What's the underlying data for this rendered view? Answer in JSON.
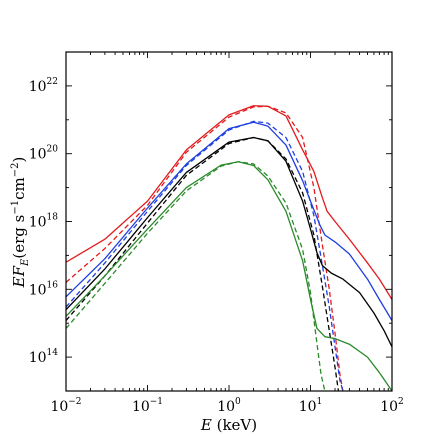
{
  "chart_data": {
    "type": "line",
    "title": "",
    "xlabel": "E (keV)",
    "xlabel_parts": {
      "var": "E",
      "unit": " (keV)"
    },
    "ylabel": "EF_E(erg s^-1 cm^-2)",
    "ylabel_parts": {
      "var": "EF",
      "sub": "E",
      "unit_open": "(erg s",
      "exp1": "−1",
      "unit_mid": "cm",
      "exp2": "−2",
      "unit_close": ")"
    },
    "x_scale": "log",
    "y_scale": "log",
    "xlim": [
      0.01,
      100
    ],
    "ylim": [
      10000000000000.0,
      1e+23
    ],
    "x_ticks": [
      {
        "value": 0.01,
        "base": "10",
        "exp": "−2"
      },
      {
        "value": 0.1,
        "base": "10",
        "exp": "−1"
      },
      {
        "value": 1,
        "base": "10",
        "exp": "0"
      },
      {
        "value": 10,
        "base": "10",
        "exp": "1"
      },
      {
        "value": 100,
        "base": "10",
        "exp": "2"
      }
    ],
    "y_ticks": [
      {
        "value": 100000000000000.0,
        "base": "10",
        "exp": "14"
      },
      {
        "value": 1e+16,
        "base": "10",
        "exp": "16"
      },
      {
        "value": 1e+18,
        "base": "10",
        "exp": "18"
      },
      {
        "value": 1e+20,
        "base": "10",
        "exp": "20"
      },
      {
        "value": 1e+22,
        "base": "10",
        "exp": "22"
      }
    ],
    "grid": false,
    "legend": "none",
    "series": [
      {
        "color": "#e31a1c",
        "style": "solid",
        "points": [
          [
            0.01,
            6.3e+16
          ],
          [
            0.03,
            3e+17
          ],
          [
            0.1,
            4e+18
          ],
          [
            0.3,
            1.3e+20
          ],
          [
            1,
            1.4e+21
          ],
          [
            2,
            2.6e+21
          ],
          [
            3,
            2.5e+21
          ],
          [
            5,
            1.3e+21
          ],
          [
            8,
            1.3e+20
          ],
          [
            11,
            3e+19
          ],
          [
            14,
            5e+18
          ],
          [
            16,
            2e+18
          ],
          [
            20,
            1e+18
          ],
          [
            30,
            3e+17
          ],
          [
            50,
            6e+16
          ],
          [
            70,
            2e+16
          ],
          [
            100,
            5000000000000000.0
          ]
        ]
      },
      {
        "color": "#e31a1c",
        "style": "dashed",
        "points": [
          [
            0.01,
            1.6e+16
          ],
          [
            0.03,
            1.6e+17
          ],
          [
            0.1,
            3e+18
          ],
          [
            0.3,
            1.1e+20
          ],
          [
            1,
            1.2e+21
          ],
          [
            2,
            2.4e+21
          ],
          [
            3,
            2.5e+21
          ],
          [
            5,
            1.6e+21
          ],
          [
            8,
            3e+20
          ],
          [
            11,
            1e+19
          ],
          [
            14,
            2e+17
          ],
          [
            17,
            1e+16
          ],
          [
            20,
            500000000000000.0
          ],
          [
            23,
            30000000000000.0
          ],
          [
            25,
            10000000000000.0
          ]
        ]
      },
      {
        "color": "#1f3fe0",
        "style": "solid",
        "points": [
          [
            0.01,
            6000000000000000.0
          ],
          [
            0.03,
            8e+16
          ],
          [
            0.1,
            2.5e+18
          ],
          [
            0.3,
            5e+19
          ],
          [
            1,
            5.5e+20
          ],
          [
            2,
            8.5e+20
          ],
          [
            3,
            6.5e+20
          ],
          [
            5,
            1.8e+20
          ],
          [
            8,
            1.6e+19
          ],
          [
            11,
            2.2e+18
          ],
          [
            13,
            8e+17
          ],
          [
            15,
            4e+17
          ],
          [
            20,
            2.5e+17
          ],
          [
            30,
            1.1e+17
          ],
          [
            50,
            2e+16
          ],
          [
            70,
            5000000000000000.0
          ],
          [
            100,
            1200000000000000.0
          ]
        ]
      },
      {
        "color": "#1f3fe0",
        "style": "dashed",
        "points": [
          [
            0.01,
            3000000000000000.0
          ],
          [
            0.03,
            6e+16
          ],
          [
            0.1,
            2e+18
          ],
          [
            0.3,
            4.5e+19
          ],
          [
            1,
            5e+20
          ],
          [
            2,
            9e+20
          ],
          [
            3,
            8e+20
          ],
          [
            5,
            3e+20
          ],
          [
            8,
            3e+19
          ],
          [
            11,
            1.5e+18
          ],
          [
            14,
            5e+16
          ],
          [
            17,
            3000000000000000.0
          ],
          [
            20,
            200000000000000.0
          ],
          [
            23,
            20000000000000.0
          ],
          [
            25,
            10000000000000.0
          ]
        ]
      },
      {
        "color": "#000000",
        "style": "solid",
        "points": [
          [
            0.01,
            2500000000000000.0
          ],
          [
            0.03,
            4e+16
          ],
          [
            0.1,
            1.3e+18
          ],
          [
            0.3,
            2.8e+19
          ],
          [
            1,
            2.2e+20
          ],
          [
            2,
            3e+20
          ],
          [
            3,
            2.4e+20
          ],
          [
            5,
            6e+19
          ],
          [
            8,
            4e+18
          ],
          [
            10,
            6e+17
          ],
          [
            12,
            1.2e+17
          ],
          [
            14,
            5e+16
          ],
          [
            18,
            3e+16
          ],
          [
            25,
            2e+16
          ],
          [
            40,
            8000000000000000.0
          ],
          [
            60,
            2000000000000000.0
          ],
          [
            80,
            600000000000000.0
          ],
          [
            100,
            200000000000000.0
          ]
        ]
      },
      {
        "color": "#000000",
        "style": "dashed",
        "points": [
          [
            0.01,
            1200000000000000.0
          ],
          [
            0.03,
            2.5e+16
          ],
          [
            0.1,
            9e+17
          ],
          [
            0.3,
            2.3e+19
          ],
          [
            1,
            2e+20
          ],
          [
            2,
            3e+20
          ],
          [
            3,
            2.4e+20
          ],
          [
            5,
            7e+19
          ],
          [
            8,
            7e+18
          ],
          [
            11,
            4e+17
          ],
          [
            14,
            1.2e+16
          ],
          [
            17,
            600000000000000.0
          ],
          [
            20,
            50000000000000.0
          ],
          [
            22,
            10000000000000.0
          ]
        ]
      },
      {
        "color": "#2a8a2a",
        "style": "solid",
        "points": [
          [
            0.01,
            1600000000000000.0
          ],
          [
            0.03,
            2.5e+16
          ],
          [
            0.1,
            6e+17
          ],
          [
            0.3,
            1e+19
          ],
          [
            0.8,
            4.6e+19
          ],
          [
            1.3,
            5.8e+19
          ],
          [
            2,
            4.5e+19
          ],
          [
            3,
            1.7e+19
          ],
          [
            5,
            2e+18
          ],
          [
            8,
            7e+16
          ],
          [
            10,
            5000000000000000.0
          ],
          [
            12,
            700000000000000.0
          ],
          [
            15,
            400000000000000.0
          ],
          [
            20,
            350000000000000.0
          ],
          [
            30,
            240000000000000.0
          ],
          [
            50,
            100000000000000.0
          ],
          [
            70,
            35000000000000.0
          ],
          [
            100,
            10000000000000.0
          ]
        ]
      },
      {
        "color": "#2a8a2a",
        "style": "dashed",
        "points": [
          [
            0.01,
            700000000000000.0
          ],
          [
            0.03,
            1.5e+16
          ],
          [
            0.1,
            4.5e+17
          ],
          [
            0.3,
            8e+18
          ],
          [
            0.8,
            4.3e+19
          ],
          [
            1.3,
            5.8e+19
          ],
          [
            2,
            5e+19
          ],
          [
            3,
            2.2e+19
          ],
          [
            5,
            3.5e+18
          ],
          [
            8,
            1.5e+17
          ],
          [
            10,
            8000000000000000.0
          ],
          [
            12,
            250000000000000.0
          ],
          [
            13.5,
            30000000000000.0
          ],
          [
            15,
            10000000000000.0
          ]
        ]
      }
    ]
  }
}
